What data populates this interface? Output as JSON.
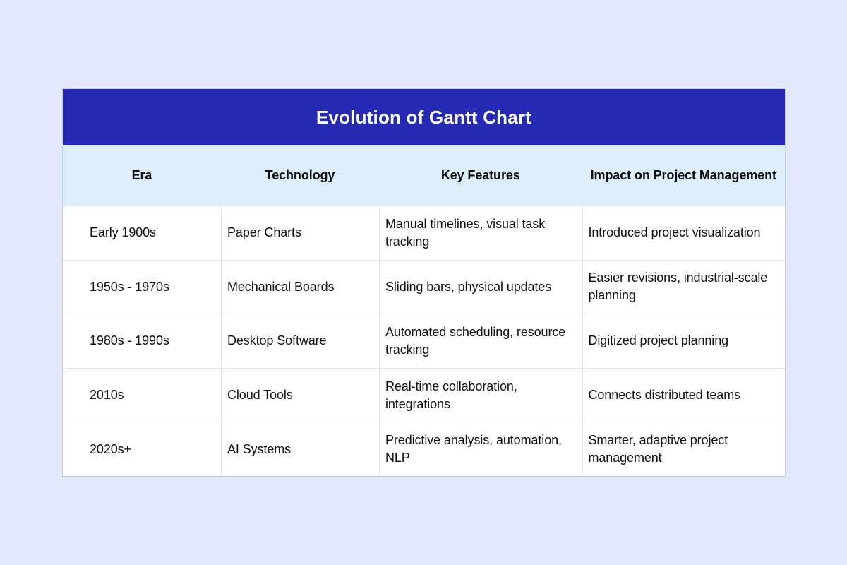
{
  "colors": {
    "page_background": "#e4e8fc",
    "title_band_background": "#2529b4",
    "title_text": "#ffffff",
    "header_row_background": "#dceefb",
    "row_background": "#ffffff",
    "border": "#e5e5ec",
    "body_text": "#101012"
  },
  "chart_data": {
    "type": "table",
    "title": "Evolution of Gantt Chart",
    "columns": [
      "Era",
      "Technology",
      "Key Features",
      "Impact on Project Management"
    ],
    "rows": [
      [
        "Early 1900s",
        "Paper Charts",
        "Manual timelines, visual task\ntracking",
        "Introduced project visualization"
      ],
      [
        "1950s - 1970s",
        "Mechanical Boards",
        "Sliding bars, physical updates",
        "Easier revisions, industrial-scale\nplanning"
      ],
      [
        "1980s - 1990s",
        "Desktop Software",
        "Automated scheduling, resource\ntracking",
        "Digitized project planning"
      ],
      [
        "2010s",
        "Cloud Tools",
        "Real-time collaboration,\nintegrations",
        "Connects distributed teams"
      ],
      [
        "2020s+",
        "AI Systems",
        "Predictive analysis, automation,\nNLP",
        "Smarter, adaptive project\nmanagement"
      ]
    ]
  }
}
